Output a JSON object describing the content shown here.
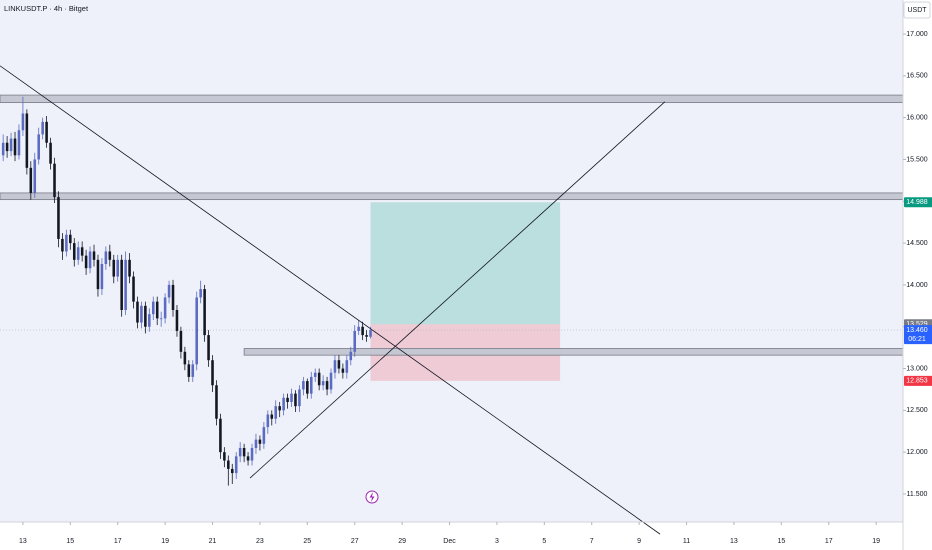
{
  "chart_data": {
    "type": "candlestick",
    "title": "LINKUSDT.P · 4h · Bitget",
    "currency": "USDT",
    "up_color": "#5b6bc2",
    "down_color": "#131722",
    "x": [
      -5,
      -4,
      -3,
      -2,
      -1,
      0,
      1,
      2,
      3,
      4,
      5,
      6,
      7,
      8,
      9,
      10,
      11,
      12,
      13,
      14,
      15,
      16,
      17,
      18,
      19,
      20,
      21,
      22,
      23,
      24,
      25,
      26,
      27,
      28,
      29,
      30,
      31,
      32,
      33,
      34,
      35,
      36,
      37,
      38,
      39,
      40,
      41,
      42,
      43,
      44,
      45,
      46,
      47,
      48,
      49,
      50,
      51,
      52,
      53,
      54,
      55,
      56,
      57,
      58,
      59,
      60,
      61,
      62,
      63,
      64,
      65,
      66,
      67,
      68,
      69,
      70,
      71,
      72,
      73,
      74,
      75,
      76,
      77,
      78,
      79,
      80,
      81,
      82,
      83,
      84,
      85,
      86,
      87,
      88
    ],
    "open": [
      15.55,
      15.7,
      15.6,
      15.75,
      15.55,
      15.85,
      16.05,
      15.4,
      15.1,
      15.5,
      15.8,
      15.95,
      15.7,
      15.45,
      15.05,
      14.55,
      14.4,
      14.6,
      14.5,
      14.3,
      14.45,
      14.35,
      14.2,
      14.4,
      14.3,
      13.95,
      14.25,
      14.4,
      14.3,
      14.1,
      14.3,
      13.7,
      14.3,
      14.1,
      13.8,
      13.55,
      13.75,
      13.5,
      13.65,
      13.8,
      13.6,
      13.6,
      13.85,
      14.0,
      13.7,
      13.45,
      13.2,
      13.05,
      12.9,
      13.05,
      13.85,
      13.95,
      13.4,
      13.1,
      12.8,
      12.4,
      12.0,
      11.9,
      11.8,
      11.75,
      11.95,
      12.05,
      11.95,
      11.9,
      12.05,
      12.15,
      12.1,
      12.3,
      12.45,
      12.4,
      12.55,
      12.5,
      12.65,
      12.6,
      12.7,
      12.55,
      12.75,
      12.85,
      12.7,
      12.9,
      12.95,
      12.8,
      12.85,
      12.75,
      12.95,
      13.1,
      13.0,
      12.95,
      13.1,
      13.2,
      13.45,
      13.5,
      13.4,
      13.38
    ],
    "high": [
      15.8,
      15.78,
      15.82,
      15.83,
      15.92,
      16.25,
      16.1,
      15.48,
      15.58,
      15.88,
      16.0,
      16.02,
      15.76,
      15.52,
      15.12,
      14.62,
      14.66,
      14.66,
      14.56,
      14.52,
      14.52,
      14.42,
      14.46,
      14.48,
      14.36,
      14.32,
      14.46,
      14.48,
      14.36,
      14.36,
      14.36,
      14.4,
      14.38,
      14.16,
      13.86,
      13.8,
      13.8,
      13.72,
      13.86,
      13.86,
      13.68,
      13.9,
      14.05,
      14.06,
      13.76,
      13.5,
      13.26,
      13.1,
      13.1,
      13.92,
      14.05,
      14.0,
      13.46,
      13.16,
      12.86,
      12.46,
      12.06,
      11.96,
      11.86,
      12.0,
      12.12,
      12.1,
      12.0,
      12.1,
      12.22,
      12.2,
      12.36,
      12.5,
      12.5,
      12.62,
      12.6,
      12.7,
      12.7,
      12.76,
      12.74,
      12.8,
      12.9,
      12.88,
      12.96,
      13.0,
      13.0,
      12.92,
      12.9,
      13.0,
      13.16,
      13.16,
      13.06,
      13.16,
      13.26,
      13.52,
      13.58,
      13.56,
      13.46,
      13.5
    ],
    "low": [
      15.48,
      15.52,
      15.54,
      15.48,
      15.5,
      15.78,
      15.32,
      15.02,
      15.04,
      15.44,
      15.74,
      15.64,
      15.38,
      14.98,
      14.45,
      14.3,
      14.34,
      14.42,
      14.22,
      14.24,
      14.28,
      14.12,
      14.14,
      14.22,
      13.86,
      13.88,
      14.18,
      14.22,
      14.02,
      14.04,
      13.62,
      13.64,
      14.02,
      13.72,
      13.48,
      13.48,
      13.42,
      13.44,
      13.58,
      13.52,
      13.5,
      13.54,
      13.78,
      13.62,
      13.38,
      13.12,
      12.98,
      12.84,
      12.84,
      12.98,
      13.78,
      13.32,
      13.02,
      12.72,
      12.32,
      11.92,
      11.82,
      11.6,
      11.62,
      11.68,
      11.88,
      11.88,
      11.84,
      11.84,
      11.98,
      12.02,
      12.04,
      12.22,
      12.32,
      12.34,
      12.42,
      12.44,
      12.52,
      12.54,
      12.48,
      12.48,
      12.68,
      12.64,
      12.64,
      12.84,
      12.74,
      12.74,
      12.68,
      12.7,
      12.88,
      12.94,
      12.88,
      12.88,
      13.04,
      13.14,
      13.4,
      13.34,
      13.32,
      13.36
    ],
    "close": [
      15.7,
      15.6,
      15.75,
      15.55,
      15.85,
      16.05,
      15.4,
      15.1,
      15.5,
      15.8,
      15.95,
      15.7,
      15.45,
      15.05,
      14.55,
      14.4,
      14.6,
      14.5,
      14.3,
      14.45,
      14.35,
      14.2,
      14.4,
      14.3,
      13.95,
      14.25,
      14.4,
      14.3,
      14.1,
      14.3,
      13.7,
      14.3,
      14.1,
      13.8,
      13.55,
      13.75,
      13.5,
      13.65,
      13.8,
      13.6,
      13.6,
      13.85,
      14.0,
      13.7,
      13.45,
      13.2,
      13.05,
      12.9,
      13.05,
      13.85,
      13.95,
      13.4,
      13.1,
      12.8,
      12.4,
      12.0,
      11.9,
      11.8,
      11.75,
      11.95,
      12.05,
      11.95,
      11.9,
      12.05,
      12.15,
      12.1,
      12.3,
      12.45,
      12.4,
      12.55,
      12.5,
      12.65,
      12.6,
      12.7,
      12.55,
      12.75,
      12.85,
      12.7,
      12.9,
      12.95,
      12.8,
      12.85,
      12.75,
      12.95,
      13.1,
      13.0,
      12.95,
      13.1,
      13.2,
      13.45,
      13.5,
      13.4,
      13.38,
      13.46
    ],
    "xlim": [
      -5.8,
      222.8
    ],
    "xticks": [
      {
        "value": 0,
        "label": "13"
      },
      {
        "value": 12,
        "label": "15"
      },
      {
        "value": 24,
        "label": "17"
      },
      {
        "value": 36,
        "label": "19"
      },
      {
        "value": 48,
        "label": "21"
      },
      {
        "value": 60,
        "label": "23"
      },
      {
        "value": 72,
        "label": "25"
      },
      {
        "value": 84,
        "label": "27"
      },
      {
        "value": 96,
        "label": "29"
      },
      {
        "value": 108,
        "label": "Dec"
      },
      {
        "value": 120,
        "label": "3"
      },
      {
        "value": 132,
        "label": "5"
      },
      {
        "value": 144,
        "label": "7"
      },
      {
        "value": 156,
        "label": "9"
      },
      {
        "value": 168,
        "label": "11"
      },
      {
        "value": 180,
        "label": "13"
      },
      {
        "value": 192,
        "label": "15"
      },
      {
        "value": 204,
        "label": "17"
      },
      {
        "value": 216,
        "label": "19"
      }
    ],
    "ylim": [
      11.165,
      17.407
    ],
    "yticks": [
      {
        "value": 11.5,
        "label": "11.500"
      },
      {
        "value": 12,
        "label": "12.000"
      },
      {
        "value": 12.5,
        "label": "12.500"
      },
      {
        "value": 13,
        "label": "13.000"
      },
      {
        "value": 13.5,
        "label": "13.500"
      },
      {
        "value": 14,
        "label": "14.000"
      },
      {
        "value": 14.5,
        "label": "14.500"
      },
      {
        "value": 15,
        "label": "15.000"
      },
      {
        "value": 15.5,
        "label": "15.500"
      },
      {
        "value": 16,
        "label": "16.000"
      },
      {
        "value": 16.5,
        "label": "16.500"
      },
      {
        "value": 17,
        "label": "17.000"
      }
    ],
    "zones": [
      {
        "top": 16.27,
        "bottom": 16.18
      },
      {
        "top": 15.1,
        "bottom": 15.02
      },
      {
        "top": 13.24,
        "bottom": 13.16,
        "start": 56
      }
    ],
    "trendlines": [
      {
        "x": [
          -5.8,
          161.3
        ],
        "y": [
          16.62,
          11.02
        ]
      },
      {
        "x": [
          57.5,
          162.5
        ],
        "y": [
          11.69,
          16.19
        ]
      }
    ],
    "position": {
      "start": 88,
      "end": 136,
      "entry": 13.529,
      "target": 14.988,
      "stop": 12.853,
      "target_color": "#089981",
      "stop_color": "#f23645",
      "entry_color": "#787b86"
    },
    "current_price": {
      "value": 13.46,
      "label": "13.460",
      "countdown": "06:21",
      "color": "#2962ff"
    }
  }
}
